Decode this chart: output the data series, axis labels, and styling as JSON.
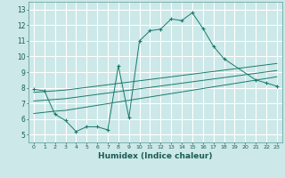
{
  "xlabel": "Humidex (Indice chaleur)",
  "background_color": "#cce8e8",
  "grid_color": "#ffffff",
  "line_color": "#1a7a6e",
  "xlim": [
    -0.5,
    23.5
  ],
  "ylim": [
    4.5,
    13.5
  ],
  "xticks": [
    0,
    1,
    2,
    3,
    4,
    5,
    6,
    7,
    8,
    9,
    10,
    11,
    12,
    13,
    14,
    15,
    16,
    17,
    18,
    19,
    20,
    21,
    22,
    23
  ],
  "yticks": [
    5,
    6,
    7,
    8,
    9,
    10,
    11,
    12,
    13
  ],
  "series": [
    {
      "x": [
        0,
        1,
        2,
        3,
        4,
        5,
        6,
        7,
        8,
        9,
        10,
        11,
        12,
        13,
        14,
        15,
        16,
        17,
        18,
        21,
        22,
        23
      ],
      "y": [
        7.9,
        7.8,
        6.3,
        5.9,
        5.2,
        5.5,
        5.5,
        5.3,
        9.4,
        6.1,
        11.0,
        11.65,
        11.75,
        12.4,
        12.3,
        12.8,
        11.8,
        10.65,
        9.85,
        8.5,
        8.3,
        8.1
      ],
      "marker": true
    },
    {
      "x": [
        0,
        2,
        3,
        23
      ],
      "y": [
        6.35,
        6.5,
        6.55,
        8.7
      ],
      "marker": false
    },
    {
      "x": [
        0,
        2,
        3,
        23
      ],
      "y": [
        7.15,
        7.25,
        7.3,
        9.1
      ],
      "marker": false
    },
    {
      "x": [
        0,
        2,
        3,
        23
      ],
      "y": [
        7.7,
        7.8,
        7.85,
        9.55
      ],
      "marker": false
    }
  ]
}
